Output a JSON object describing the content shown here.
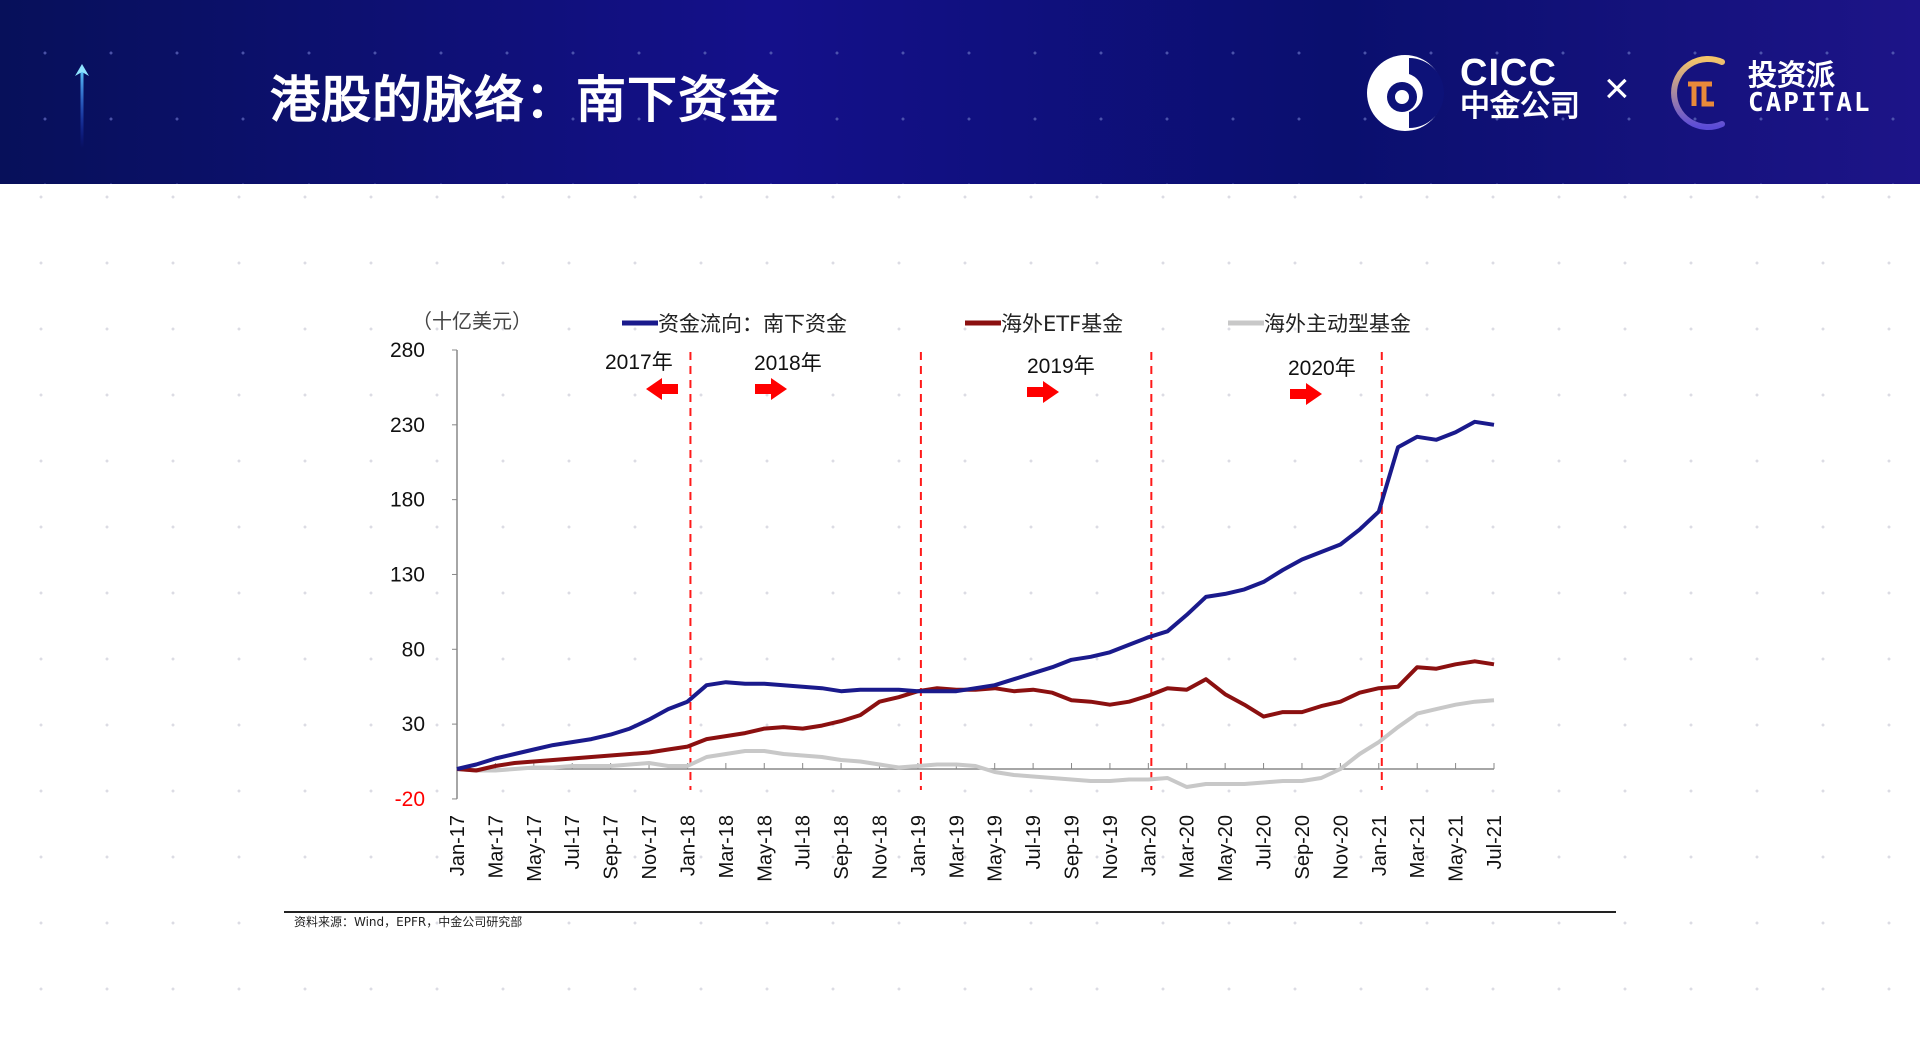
{
  "header": {
    "title": "港股的脉络：南下资金",
    "logo_cicc_en": "CICC",
    "logo_cicc_cn": "中金公司",
    "logo_separator": "×",
    "logo_partner_cn": "投资派",
    "logo_partner_en": "CAPITAL"
  },
  "footer": {
    "source": "资料来源：Wind，EPFR，中金公司研究部"
  },
  "chart_data": {
    "type": "line",
    "ylabel": "（十亿美元）",
    "ylim": [
      -20,
      280
    ],
    "yticks": [
      280,
      230,
      180,
      130,
      80,
      30,
      -20
    ],
    "grid": false,
    "legend_position": "top",
    "x": [
      "Jan-17",
      "Feb-17",
      "Mar-17",
      "Apr-17",
      "May-17",
      "Jun-17",
      "Jul-17",
      "Aug-17",
      "Sep-17",
      "Oct-17",
      "Nov-17",
      "Dec-17",
      "Jan-18",
      "Feb-18",
      "Mar-18",
      "Apr-18",
      "May-18",
      "Jun-18",
      "Jul-18",
      "Aug-18",
      "Sep-18",
      "Oct-18",
      "Nov-18",
      "Dec-18",
      "Jan-19",
      "Feb-19",
      "Mar-19",
      "Apr-19",
      "May-19",
      "Jun-19",
      "Jul-19",
      "Aug-19",
      "Sep-19",
      "Oct-19",
      "Nov-19",
      "Dec-19",
      "Jan-20",
      "Feb-20",
      "Mar-20",
      "Apr-20",
      "May-20",
      "Jun-20",
      "Jul-20",
      "Aug-20",
      "Sep-20",
      "Oct-20",
      "Nov-20",
      "Dec-20",
      "Jan-21",
      "Feb-21",
      "Mar-21",
      "Apr-21",
      "May-21",
      "Jun-21",
      "Jul-21"
    ],
    "xtick_labels": [
      "Jan-17",
      "Mar-17",
      "May-17",
      "Jul-17",
      "Sep-17",
      "Nov-17",
      "Jan-18",
      "Mar-18",
      "May-18",
      "Jul-18",
      "Sep-18",
      "Nov-18",
      "Jan-19",
      "Mar-19",
      "May-19",
      "Jul-19",
      "Sep-19",
      "Nov-19",
      "Jan-20",
      "Mar-20",
      "May-20",
      "Jul-20",
      "Sep-20",
      "Nov-20",
      "Jan-21",
      "Mar-21",
      "May-21",
      "Jul-21"
    ],
    "series": [
      {
        "name": "资金流向：南下资金",
        "color": "#1a1a8c",
        "values": [
          0,
          3,
          7,
          10,
          13,
          16,
          18,
          20,
          23,
          27,
          33,
          40,
          45,
          56,
          58,
          57,
          57,
          56,
          55,
          54,
          52,
          53,
          53,
          53,
          52,
          52,
          52,
          54,
          56,
          60,
          64,
          68,
          73,
          75,
          78,
          83,
          88,
          92,
          103,
          115,
          117,
          120,
          125,
          133,
          140,
          145,
          150,
          160,
          172,
          215,
          222,
          220,
          225,
          232,
          230
        ]
      },
      {
        "name": "海外ETF基金",
        "color": "#8b1010",
        "values": [
          0,
          -1,
          2,
          4,
          5,
          6,
          7,
          8,
          9,
          10,
          11,
          13,
          15,
          20,
          22,
          24,
          27,
          28,
          27,
          29,
          32,
          36,
          45,
          48,
          52,
          54,
          53,
          53,
          54,
          52,
          53,
          51,
          46,
          45,
          43,
          45,
          49,
          54,
          53,
          60,
          50,
          43,
          35,
          38,
          38,
          42,
          45,
          51,
          54,
          55,
          68,
          67,
          70,
          72,
          70
        ]
      },
      {
        "name": "海外主动型基金",
        "color": "#c8c8c8",
        "values": [
          0,
          -1,
          -1,
          0,
          1,
          1,
          2,
          2,
          2,
          3,
          4,
          2,
          2,
          8,
          10,
          12,
          12,
          10,
          9,
          8,
          6,
          5,
          3,
          1,
          2,
          3,
          3,
          2,
          -2,
          -4,
          -5,
          -6,
          -7,
          -8,
          -8,
          -7,
          -7,
          -6,
          -12,
          -10,
          -10,
          -10,
          -9,
          -8,
          -8,
          -6,
          0,
          10,
          18,
          28,
          37,
          40,
          43,
          45,
          46
        ]
      }
    ],
    "vlines": [
      "Jan-18",
      "Jan-19",
      "Jan-20",
      "Jan-21"
    ],
    "annotations": [
      {
        "text": "2017年",
        "arrow": "left",
        "color": "#ff0000"
      },
      {
        "text": "2018年",
        "arrow": "right",
        "color": "#ff0000"
      },
      {
        "text": "2019年",
        "arrow": "right",
        "color": "#ff0000"
      },
      {
        "text": "2020年",
        "arrow": "right",
        "color": "#ff0000"
      }
    ],
    "negative_tick_color": "#ff0000"
  }
}
